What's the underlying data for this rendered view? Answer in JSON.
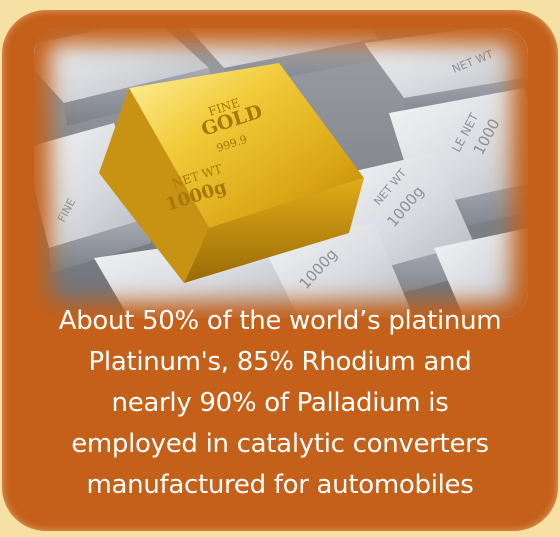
{
  "colors": {
    "page_background": "#f6e0a3",
    "card_background": "#c4601a",
    "text": "#ffffff",
    "gold": "#e2b01a",
    "silver": "#d6d8de"
  },
  "image": {
    "subject": "gold and silver bullion bars",
    "gold_bar_text": [
      "FINE",
      "GOLD",
      "999.9",
      "NET WT",
      "1000g"
    ],
    "silver_bar_text": [
      "NET WT",
      "1000g",
      "1000g",
      "LE NET",
      "1000"
    ]
  },
  "caption": {
    "lines": [
      "About 50% of the world’s platinum",
      "Platinum's, 85% Rhodium and",
      "nearly  90% of Palladium is",
      "employed in catalytic converters",
      "manufactured for automobiles"
    ]
  }
}
